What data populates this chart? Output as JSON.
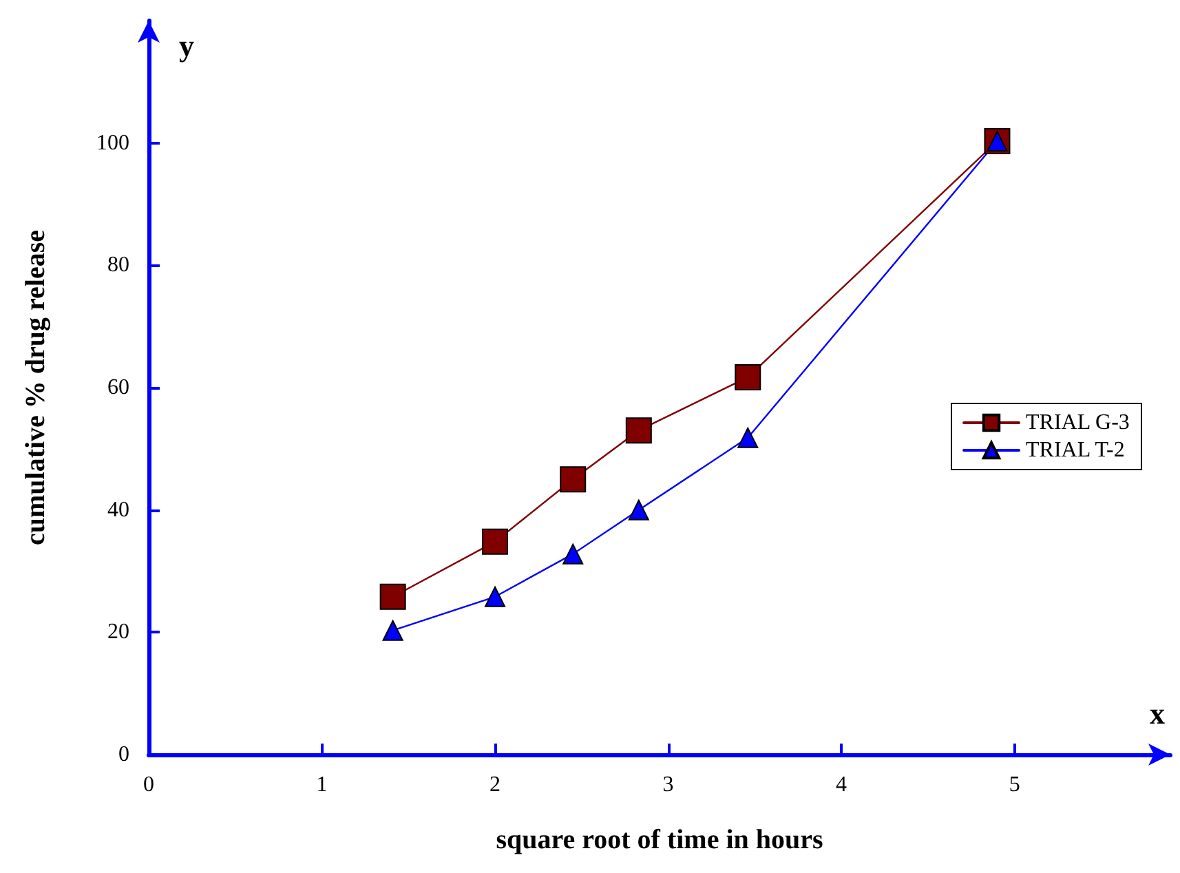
{
  "chart_data": {
    "type": "line",
    "xlabel": "square root of time in hours",
    "ylabel": "cumulative % drug release",
    "annotations": [
      "y",
      "x"
    ],
    "x": [
      1.41,
      2,
      2.45,
      2.83,
      3.46,
      4.9
    ],
    "series": [
      {
        "name": "TRIAL G-3",
        "color": "#800000",
        "marker": "square",
        "values": [
          25.8,
          34.8,
          45,
          53,
          61.7,
          100.3
        ]
      },
      {
        "name": "TRIAL T-2",
        "color": "#0000ff",
        "marker": "triangle",
        "values": [
          20.3,
          25.8,
          32.8,
          40,
          51.8,
          100.3
        ]
      }
    ],
    "xlim": [
      0,
      5.9
    ],
    "xticks": [
      0,
      1,
      2,
      3,
      4,
      5
    ],
    "ylim": [
      0,
      120
    ],
    "yticks": [
      0,
      20,
      40,
      60,
      80,
      100
    ],
    "grid": false,
    "legend": "right",
    "line_style": "solid"
  }
}
